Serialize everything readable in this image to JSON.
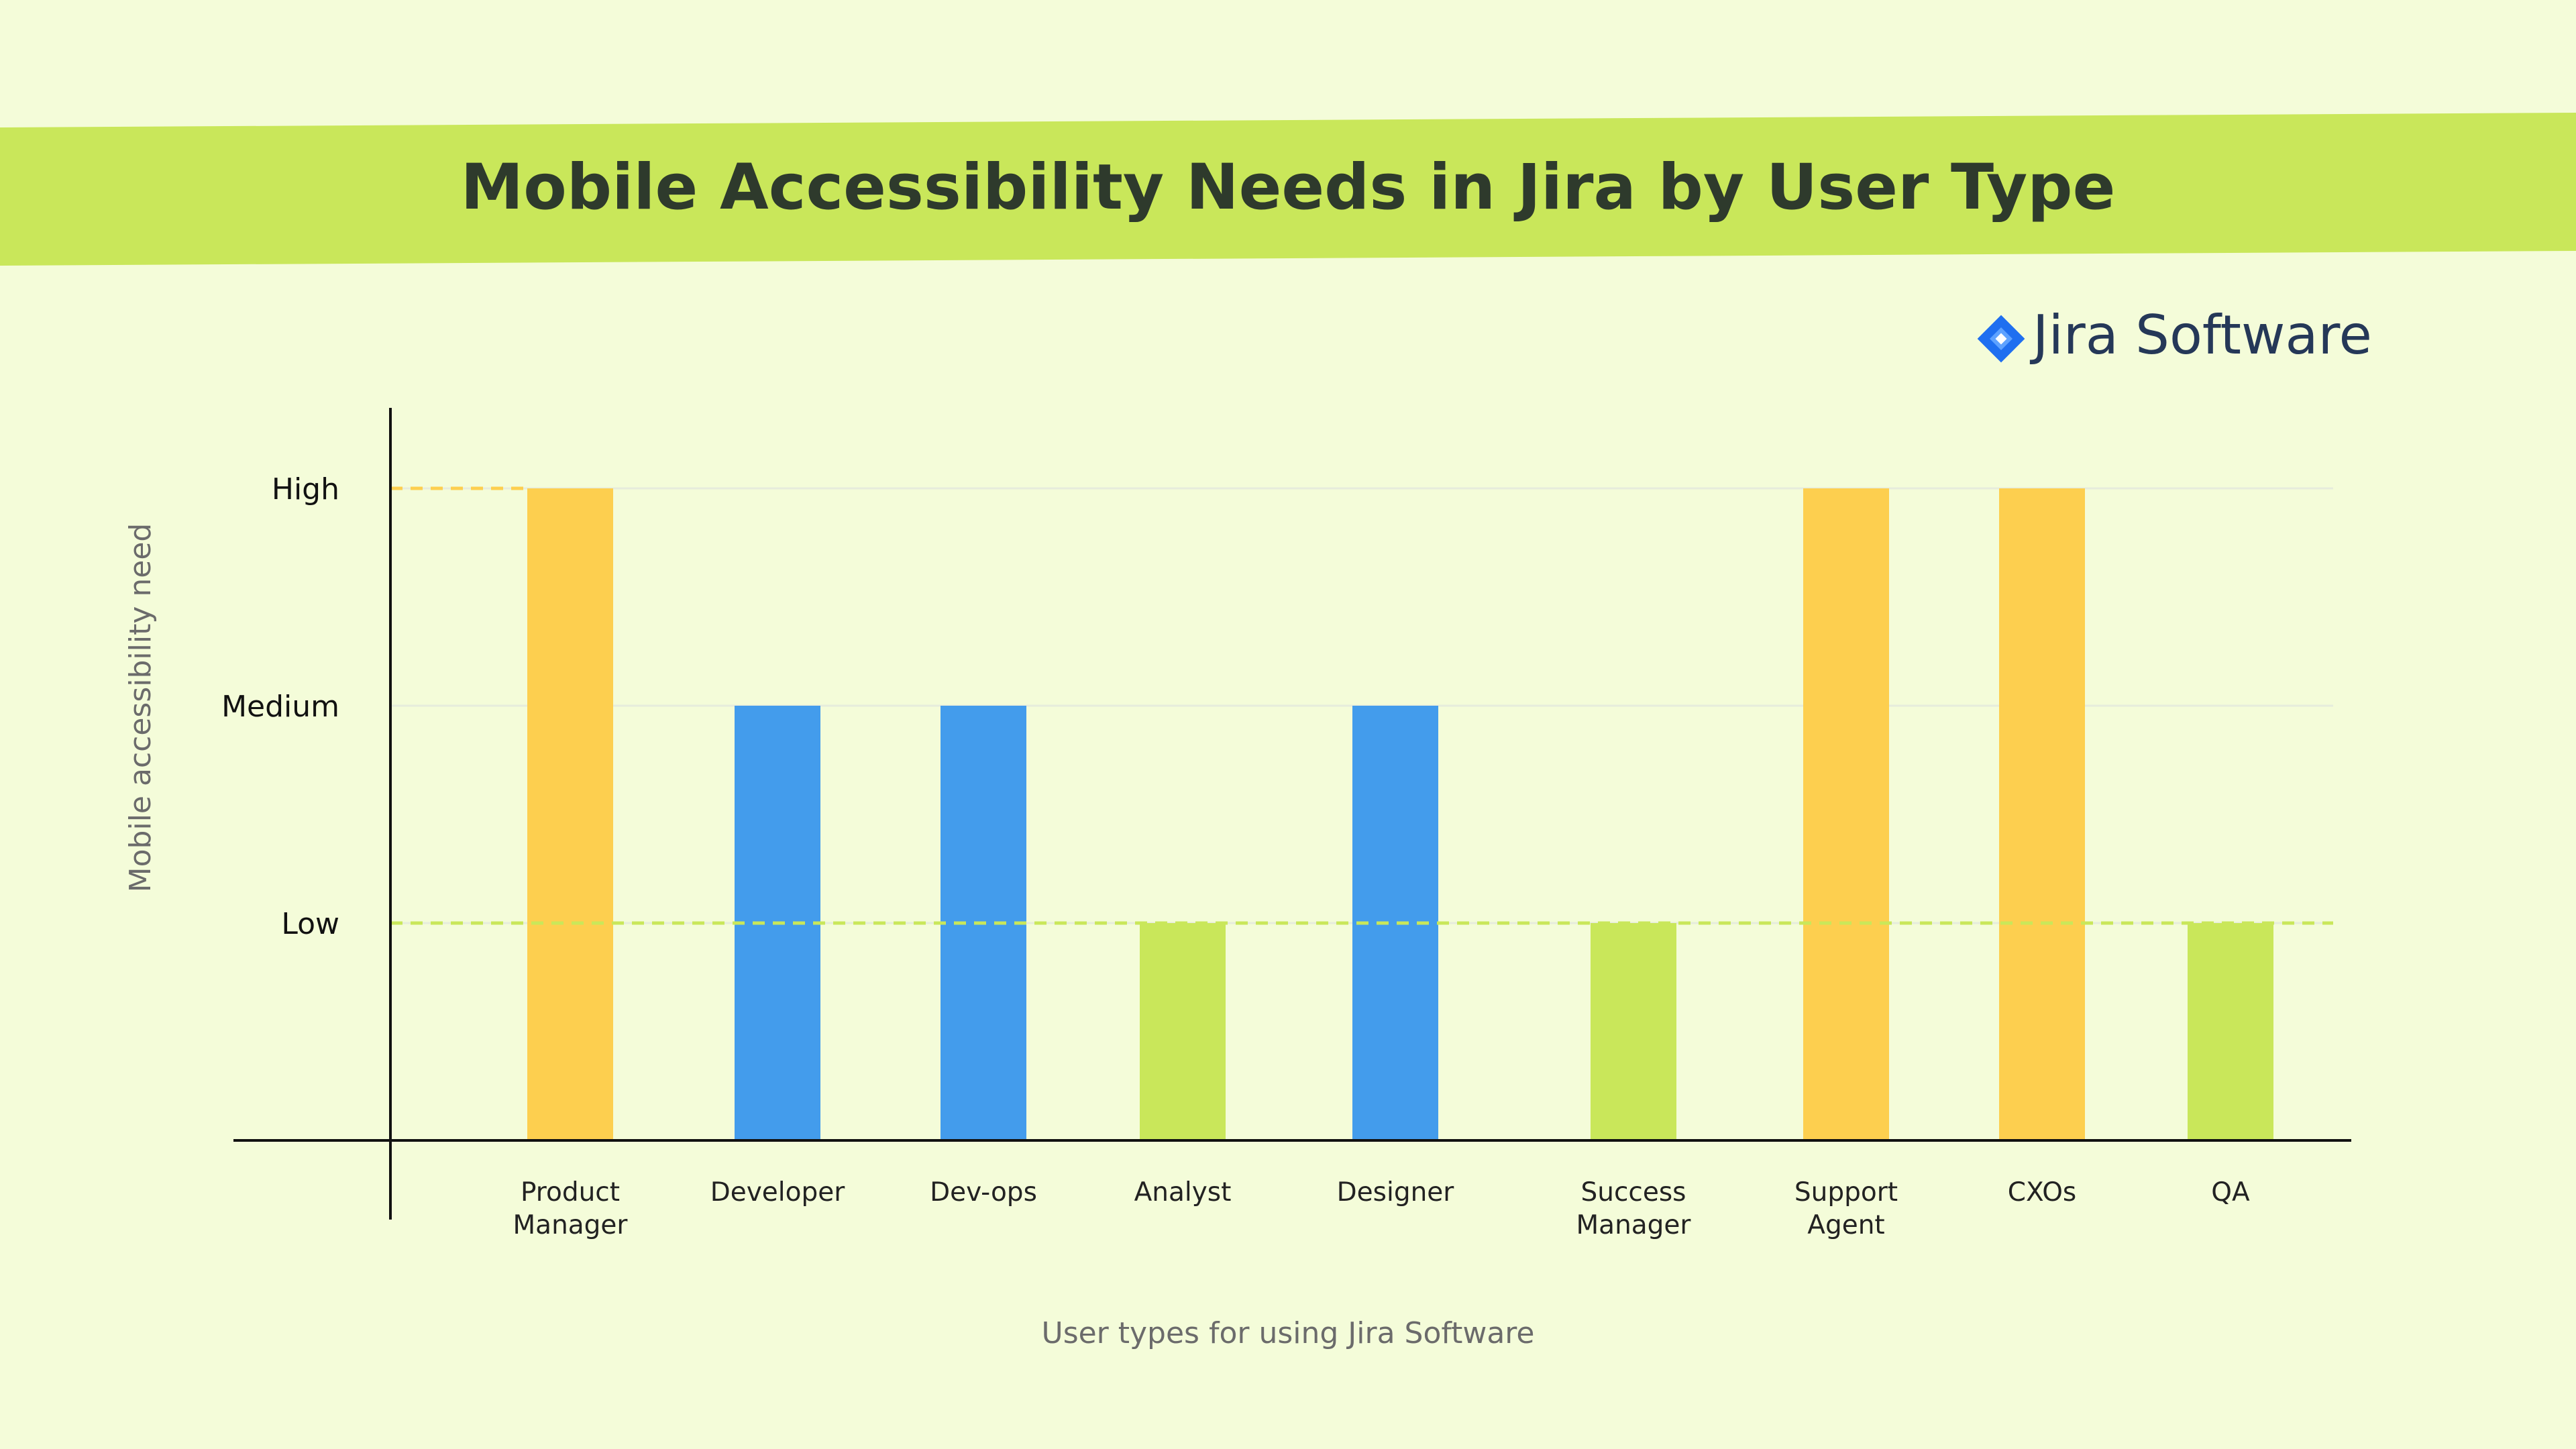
{
  "header": {
    "title": "Mobile Accessibility Needs in Jira by User Type",
    "banner_color": "#c9e75a"
  },
  "brand": {
    "name": "Jira Software",
    "icon": "jira-diamond-icon",
    "icon_color": "#1f6ff0"
  },
  "chart_data": {
    "type": "bar",
    "title": "Mobile Accessibility Needs in Jira by User Type",
    "xlabel": "User types for using Jira Software",
    "ylabel": "Mobile accessibility need",
    "y_tick_labels": [
      "Low",
      "Medium",
      "High"
    ],
    "y_tick_values": [
      1,
      2,
      3
    ],
    "ylim": [
      0,
      3
    ],
    "categories": [
      [
        "Product",
        "Manager"
      ],
      [
        "Developer"
      ],
      [
        "Dev-ops"
      ],
      [
        "Analyst"
      ],
      [
        "Designer"
      ],
      [
        "Success",
        "Manager"
      ],
      [
        "Support",
        "Agent"
      ],
      [
        "CXOs"
      ],
      [
        "QA"
      ]
    ],
    "values": [
      3,
      2,
      2,
      1,
      2,
      1,
      3,
      3,
      1
    ],
    "level_colors": {
      "1": "#c9e75a",
      "2": "#439cec",
      "3": "#fdcf4f"
    },
    "grid": true,
    "reference_lines": [
      {
        "value": 3,
        "color": "#fdcf4f",
        "style": "dashed",
        "extent": "axis-to-first-bar"
      },
      {
        "value": 1,
        "color": "#c9e75a",
        "style": "dashed",
        "extent": "full"
      }
    ]
  }
}
